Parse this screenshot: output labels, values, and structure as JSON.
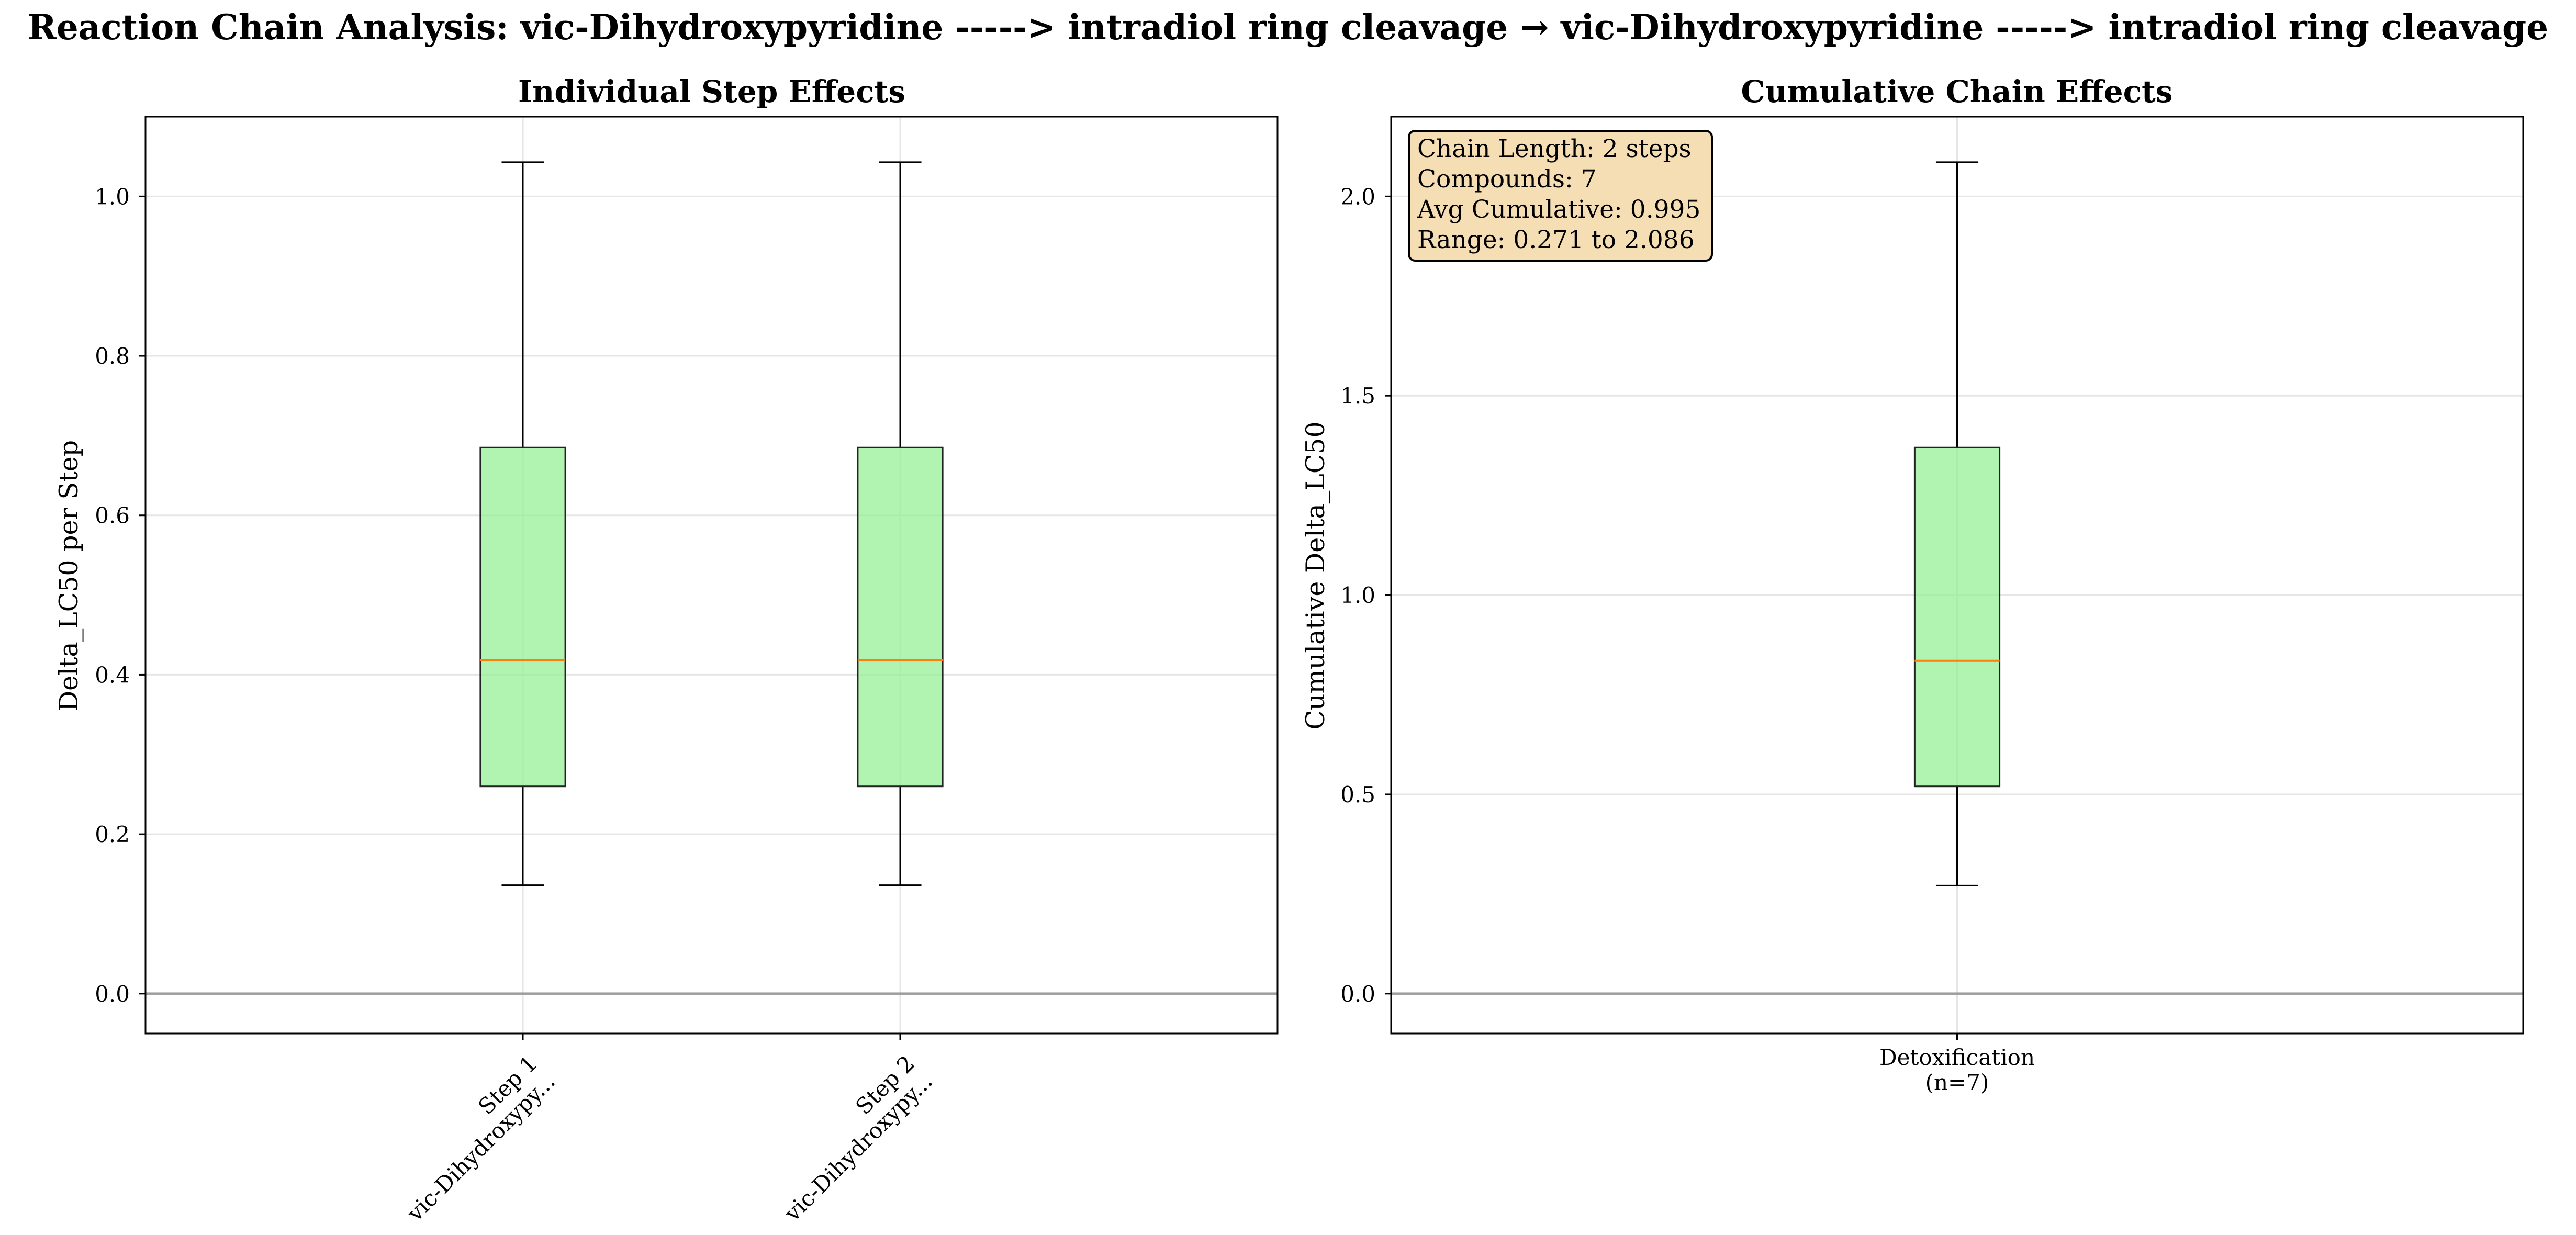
{
  "suptitle": "Reaction Chain Analysis: vic-Dihydroxypyridine -----> intradiol ring cleavage → vic-Dihydroxypyridine -----> intradiol ring cleavage",
  "colors": {
    "box_fill": "#90ee90",
    "median": "#ff7f0e",
    "zero_line": "#808080",
    "stats_bg": "#f5deb3"
  },
  "chart_data": [
    {
      "type": "box",
      "title": "Individual Step Effects",
      "xlabel": "",
      "ylabel": "Delta_LC50 per Step",
      "ylim": [
        -0.05,
        1.1
      ],
      "yticks": [
        "0.0",
        "0.2",
        "0.4",
        "0.6",
        "0.8",
        "1.0"
      ],
      "grid": true,
      "reference_line": 0,
      "categories": [
        [
          "Step 1",
          "vic-Dihydroxypy..."
        ],
        [
          "Step 2",
          "vic-Dihydroxypy..."
        ]
      ],
      "boxes": [
        {
          "whisker_low": 0.136,
          "q1": 0.26,
          "median": 0.418,
          "q3": 0.685,
          "whisker_high": 1.043
        },
        {
          "whisker_low": 0.136,
          "q1": 0.26,
          "median": 0.418,
          "q3": 0.685,
          "whisker_high": 1.043
        }
      ]
    },
    {
      "type": "box",
      "title": "Cumulative Chain Effects",
      "xlabel": "",
      "ylabel": "Cumulative Delta_LC50",
      "ylim": [
        -0.1,
        2.2
      ],
      "yticks": [
        "0.0",
        "0.5",
        "1.0",
        "1.5",
        "2.0"
      ],
      "grid": true,
      "reference_line": 0,
      "categories": [
        [
          "Detoxification",
          "(n=7)"
        ]
      ],
      "boxes": [
        {
          "whisker_low": 0.271,
          "q1": 0.52,
          "median": 0.835,
          "q3": 1.37,
          "whisker_high": 2.086
        }
      ],
      "stats_box": [
        "Chain Length: 2 steps",
        "Compounds: 7",
        "Avg Cumulative: 0.995",
        "Range: 0.271 to 2.086"
      ]
    }
  ]
}
